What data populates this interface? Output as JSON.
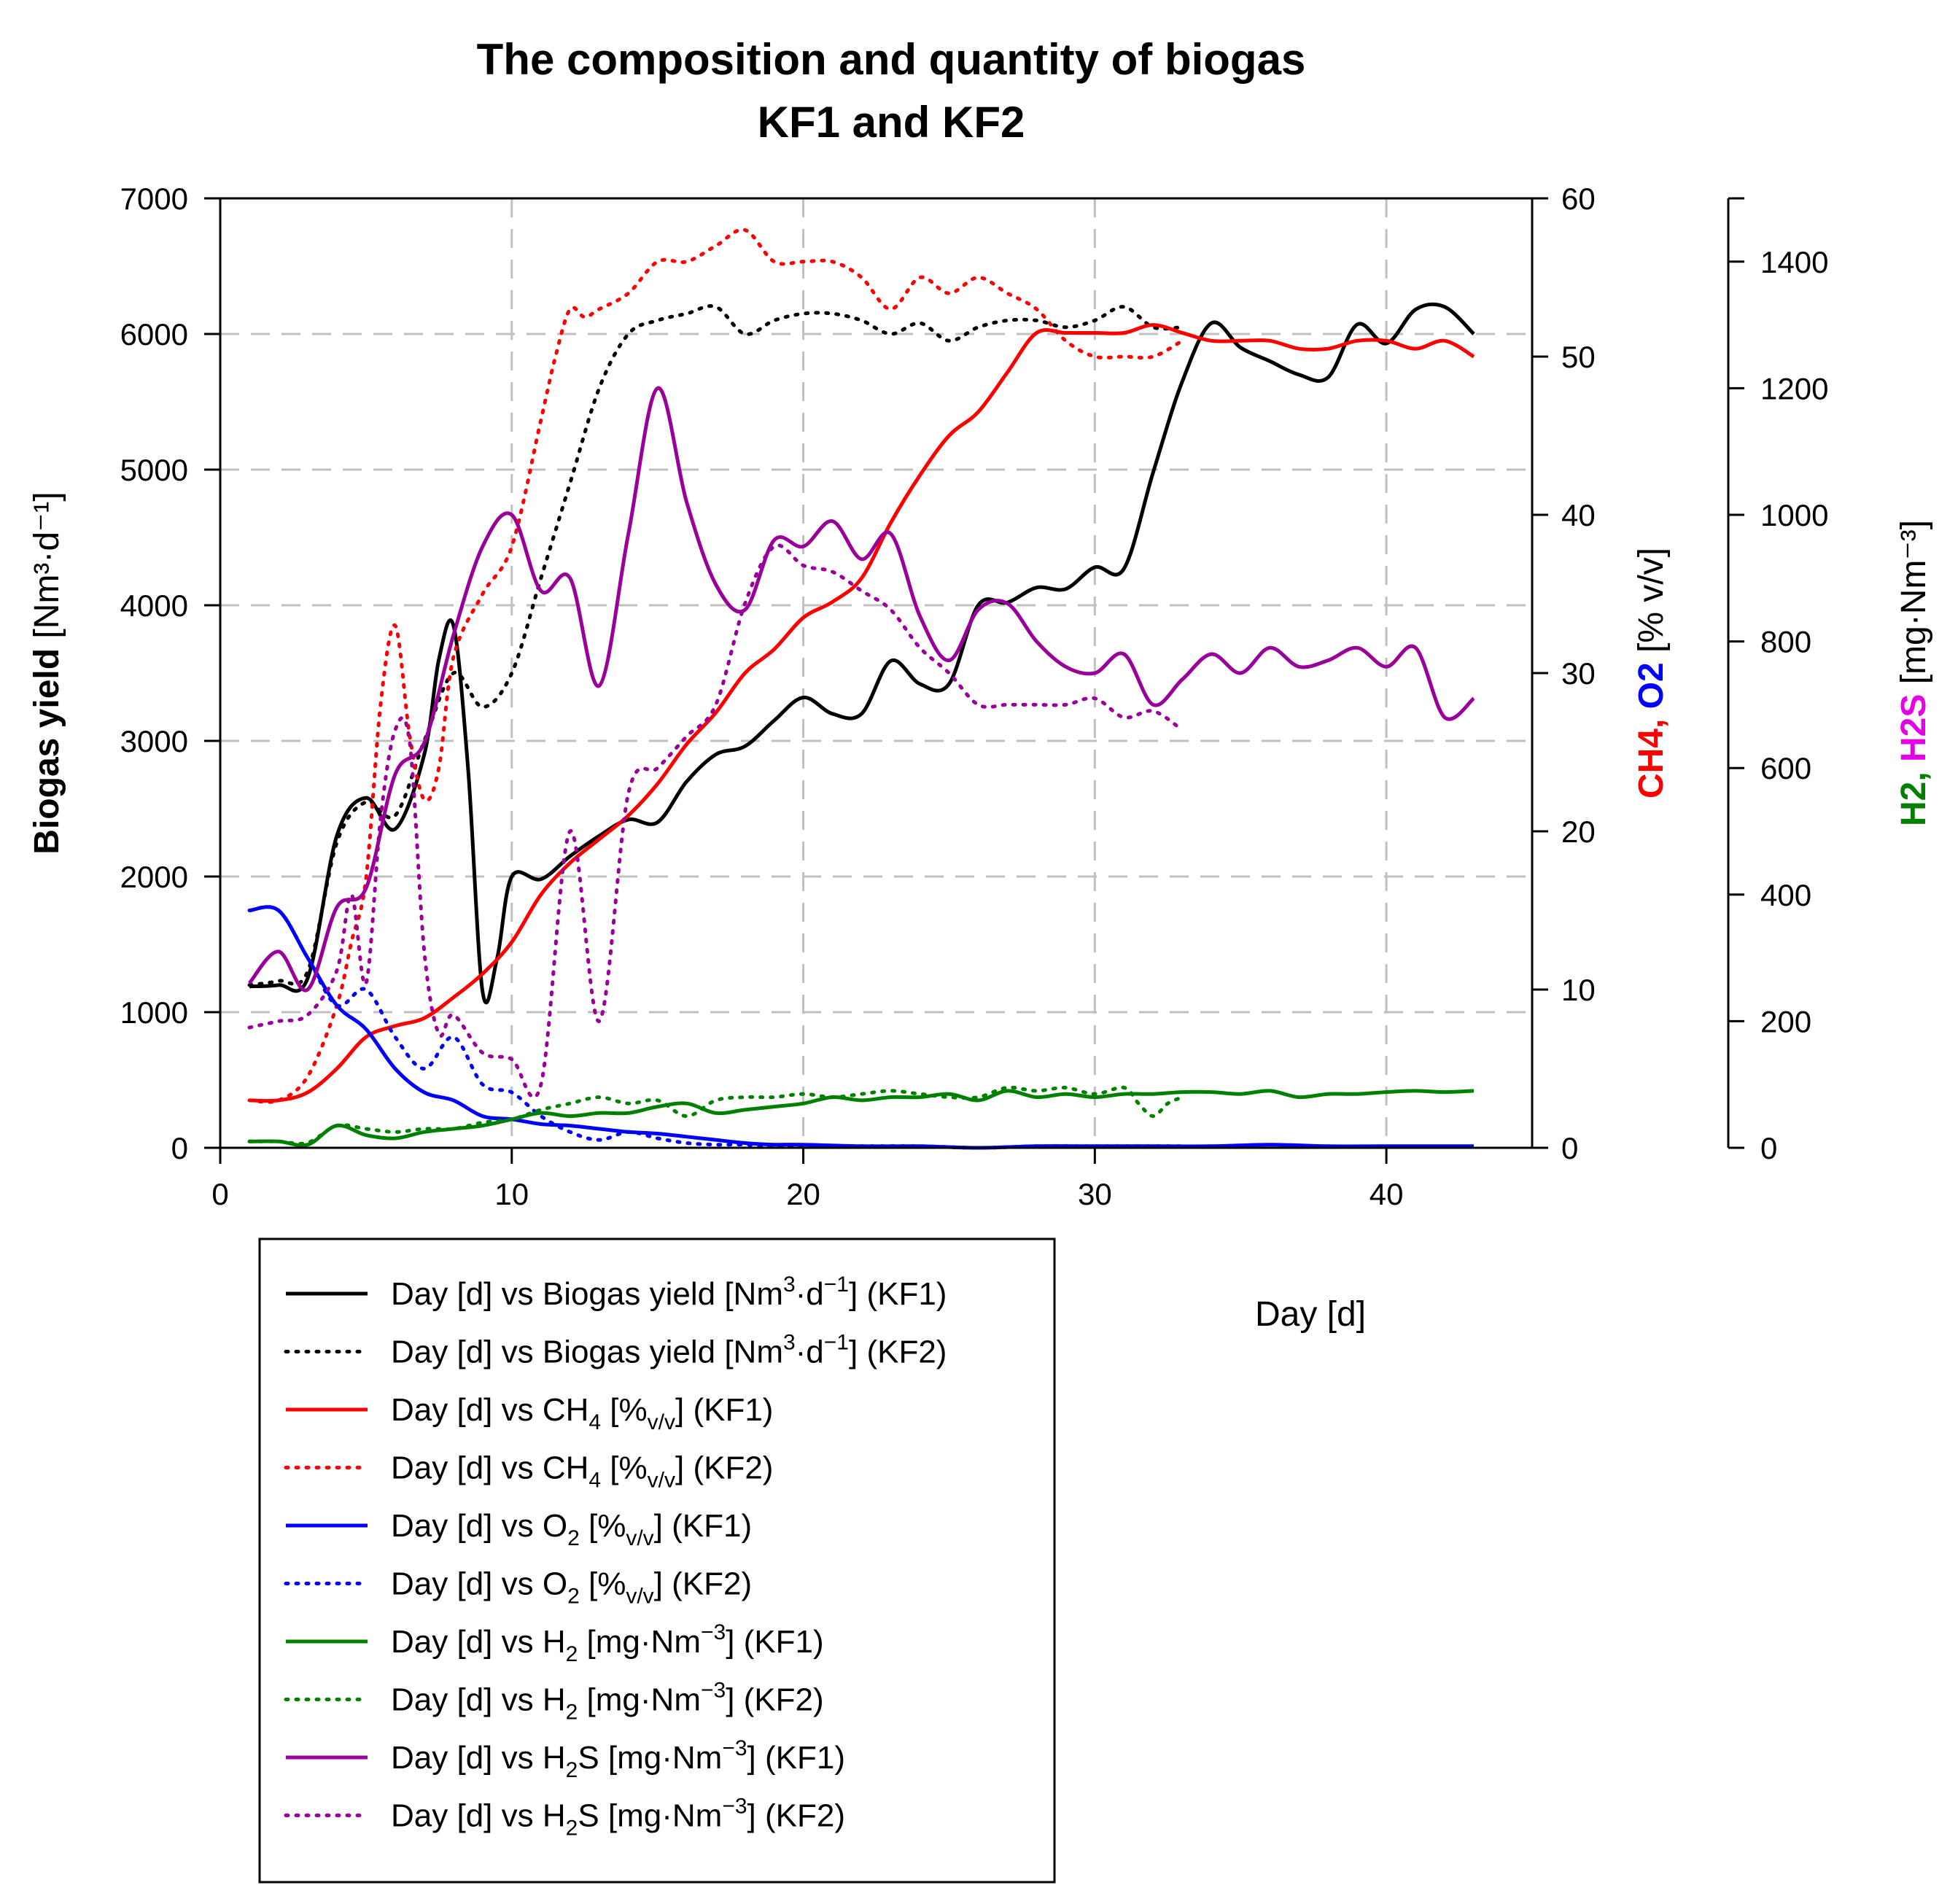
{
  "chart_data": {
    "type": "line",
    "title": [
      "The composition and quantity of biogas",
      "KF1 and KF2"
    ],
    "xlabel": "Day [d]",
    "xlim": [
      0,
      45
    ],
    "x_ticks": [
      "0",
      "10",
      "20",
      "30",
      "40"
    ],
    "axes": {
      "left": {
        "label": "Biogas yield [Nm³·d⁻¹]",
        "label_bold": "Biogas yield",
        "label_rest": " [Nm³·d⁻¹]",
        "ylim": [
          0,
          7000
        ],
        "ticks": [
          "0",
          "1000",
          "2000",
          "3000",
          "4000",
          "5000",
          "6000",
          "7000"
        ]
      },
      "right1": {
        "label": "CH4, O2 [% v/v]",
        "label_ch4": "CH4,",
        "label_o2": " O2",
        "label_unit": " [% v/v]",
        "ylim": [
          0,
          60
        ],
        "ticks": [
          "0",
          "10",
          "20",
          "30",
          "40",
          "50",
          "60"
        ]
      },
      "right2": {
        "label": "H2, H2S [mg·Nm⁻³]",
        "label_h2": "H2,",
        "label_h2s": " H2S",
        "label_unit": " [mg·Nm⁻³]",
        "ylim": [
          0,
          1500
        ],
        "ticks": [
          "0",
          "200",
          "400",
          "600",
          "800",
          "1000",
          "1200",
          "1400"
        ]
      }
    },
    "colors": {
      "ch4": "#ff0000",
      "o2": "#0000ff",
      "h2": "#008000",
      "h2s": "#990099",
      "h2s_label": "#e600e6",
      "biogas": "#000000",
      "grid": "#c0c0c0"
    },
    "series": [
      {
        "name": "Day [d] vs Biogas yield [Nm3·d-1] (KF1)",
        "axis": "left",
        "color": "#000000",
        "style": "solid",
        "x": [
          1,
          2,
          3,
          4,
          5,
          6,
          7,
          7.5,
          8,
          8.5,
          9,
          9.5,
          10,
          11,
          12,
          13,
          14,
          15,
          16,
          17,
          18,
          19,
          20,
          21,
          22,
          23,
          24,
          25,
          26,
          27,
          28,
          29,
          30,
          31,
          32,
          33,
          34,
          35,
          36,
          37,
          38,
          39,
          40,
          41,
          42,
          43
        ],
        "y": [
          1190,
          1200,
          1250,
          2300,
          2580,
          2350,
          2900,
          3600,
          3850,
          2800,
          1150,
          1400,
          2000,
          1980,
          2150,
          2300,
          2420,
          2400,
          2700,
          2900,
          2960,
          3150,
          3320,
          3200,
          3200,
          3590,
          3420,
          3420,
          4000,
          4020,
          4130,
          4120,
          4280,
          4270,
          4980,
          5650,
          6080,
          5900,
          5800,
          5700,
          5680,
          6070,
          5930,
          6180,
          6200,
          6000
        ]
      },
      {
        "name": "Day [d] vs Biogas yield [Nm3·d-1] (KF2)",
        "axis": "left",
        "color": "#000000",
        "style": "dotted",
        "x": [
          1,
          2,
          3,
          4,
          5,
          6,
          7,
          8,
          9,
          10,
          11,
          12,
          13,
          14,
          15,
          16,
          17,
          18,
          19,
          20,
          21,
          22,
          23,
          24,
          25,
          26,
          27,
          28,
          29,
          30,
          31,
          32,
          33
        ],
        "y": [
          1200,
          1230,
          1300,
          2250,
          2550,
          2450,
          3000,
          3500,
          3250,
          3500,
          4200,
          4900,
          5600,
          6000,
          6100,
          6150,
          6200,
          6000,
          6100,
          6150,
          6150,
          6100,
          6000,
          6080,
          5950,
          6050,
          6100,
          6100,
          6050,
          6100,
          6200,
          6050,
          6050
        ]
      },
      {
        "name": "Day [d] vs CH4 [%v/v] (KF1)",
        "axis": "right1",
        "color": "#ff0000",
        "style": "solid",
        "x": [
          1,
          2,
          3,
          4,
          5,
          6,
          7,
          8,
          9,
          10,
          11,
          12,
          13,
          14,
          15,
          16,
          17,
          18,
          19,
          20,
          21,
          22,
          23,
          24,
          25,
          26,
          27,
          28,
          29,
          30,
          31,
          32,
          33,
          34,
          35,
          36,
          37,
          38,
          39,
          40,
          41,
          42,
          43
        ],
        "y": [
          3,
          3,
          3.5,
          5,
          7,
          7.7,
          8.2,
          9.5,
          11,
          13,
          16,
          18,
          19.5,
          21,
          23,
          25.5,
          27.5,
          30,
          31.5,
          33.5,
          34.5,
          36,
          39.5,
          42.5,
          45,
          46.5,
          49,
          51.5,
          51.5,
          51.5,
          51.5,
          52,
          51.5,
          51,
          51,
          51,
          50.5,
          50.5,
          51,
          51,
          50.5,
          51,
          50
        ]
      },
      {
        "name": "Day [d] vs CH4 [%v/v] (KF2)",
        "axis": "right1",
        "color": "#ff0000",
        "style": "dotted",
        "x": [
          1,
          2,
          3,
          4,
          4.5,
          5,
          5.5,
          6,
          6.5,
          7,
          7.5,
          8,
          9,
          10,
          11,
          11.5,
          12,
          12.5,
          13,
          14,
          15,
          16,
          17,
          18,
          19,
          20,
          21,
          22,
          23,
          24,
          25,
          26,
          27,
          28,
          29,
          30,
          31,
          32,
          33
        ],
        "y": [
          3,
          3,
          4.5,
          9,
          13,
          17,
          28,
          33,
          26,
          22,
          24,
          31,
          35,
          38,
          46,
          50,
          53,
          52.5,
          53,
          54,
          56,
          56,
          57,
          58,
          56,
          56,
          56,
          55,
          53,
          55,
          54,
          55,
          54,
          53,
          51,
          50,
          50,
          50,
          51
        ]
      },
      {
        "name": "Day [d] vs O2 [%v/v] (KF1)",
        "axis": "right1",
        "color": "#0000ff",
        "style": "solid",
        "x": [
          1,
          2,
          3,
          4,
          5,
          6,
          7,
          8,
          9,
          10,
          11,
          12,
          13,
          14,
          15,
          16,
          17,
          18,
          19,
          20,
          22,
          24,
          26,
          28,
          30,
          32,
          34,
          36,
          38,
          40,
          43
        ],
        "y": [
          15,
          15,
          12,
          9,
          7.5,
          5,
          3.5,
          3,
          2,
          1.8,
          1.5,
          1.4,
          1.2,
          1,
          0.9,
          0.7,
          0.5,
          0.3,
          0.2,
          0.2,
          0.1,
          0.1,
          0,
          0.1,
          0.1,
          0.1,
          0.1,
          0.2,
          0.1,
          0.1,
          0.1
        ]
      },
      {
        "name": "Day [d] vs O2 [%v/v] (KF2)",
        "axis": "right1",
        "color": "#0000ff",
        "style": "dotted",
        "x": [
          1,
          2,
          3,
          4,
          5,
          6,
          7,
          8,
          9,
          10,
          11,
          12,
          13,
          14,
          15,
          16,
          17,
          18,
          19,
          20,
          22,
          24,
          26,
          28,
          30,
          32,
          33
        ],
        "y": [
          15,
          15,
          12,
          9,
          10,
          7,
          5,
          7,
          4,
          3.5,
          2,
          1,
          0.5,
          1,
          0.6,
          0.3,
          0.2,
          0.2,
          0.1,
          0.1,
          0.1,
          0.1,
          0,
          0.1,
          0.1,
          0.1,
          0.1
        ]
      },
      {
        "name": "Day [d] vs H2 [mg·Nm-3] (KF1)",
        "axis": "right2",
        "color": "#008000",
        "style": "solid",
        "x": [
          1,
          2,
          3,
          4,
          5,
          6,
          7,
          8,
          9,
          10,
          11,
          12,
          13,
          14,
          15,
          16,
          17,
          18,
          19,
          20,
          21,
          22,
          23,
          24,
          25,
          26,
          27,
          28,
          29,
          30,
          31,
          32,
          33,
          34,
          35,
          36,
          37,
          38,
          39,
          40,
          41,
          42,
          43
        ],
        "y": [
          10,
          10,
          5,
          35,
          20,
          15,
          25,
          30,
          35,
          45,
          55,
          50,
          55,
          55,
          65,
          70,
          55,
          60,
          65,
          70,
          80,
          75,
          80,
          80,
          85,
          75,
          90,
          80,
          85,
          80,
          85,
          85,
          88,
          88,
          85,
          90,
          80,
          85,
          85,
          88,
          90,
          88,
          90
        ]
      },
      {
        "name": "Day [d] vs H2 [mg·Nm-3] (KF2)",
        "axis": "right2",
        "color": "#008000",
        "style": "dotted",
        "x": [
          1,
          2,
          3,
          4,
          5,
          6,
          7,
          8,
          9,
          10,
          11,
          12,
          13,
          14,
          15,
          16,
          17,
          18,
          19,
          20,
          21,
          22,
          23,
          24,
          25,
          26,
          27,
          28,
          29,
          30,
          31,
          31.5,
          32,
          32.5,
          33
        ],
        "y": [
          10,
          10,
          8,
          35,
          30,
          25,
          30,
          30,
          40,
          45,
          60,
          70,
          80,
          70,
          75,
          50,
          75,
          80,
          80,
          85,
          80,
          85,
          90,
          85,
          80,
          80,
          95,
          90,
          95,
          85,
          95,
          70,
          50,
          70,
          80
        ]
      },
      {
        "name": "Day [d] vs H2S [mg·Nm-3] (KF1)",
        "axis": "right2",
        "color": "#990099",
        "style": "solid",
        "x": [
          1,
          2,
          3,
          4,
          5,
          6,
          7,
          8,
          9,
          10,
          11,
          12,
          13,
          14,
          15,
          16,
          17,
          18,
          19,
          20,
          21,
          22,
          23,
          24,
          25,
          26,
          27,
          28,
          29,
          30,
          31,
          32,
          33,
          34,
          35,
          36,
          37,
          38,
          39,
          40,
          41,
          42,
          43
        ],
        "y": [
          260,
          310,
          250,
          380,
          410,
          590,
          640,
          810,
          950,
          1000,
          880,
          900,
          730,
          970,
          1200,
          1020,
          890,
          850,
          960,
          950,
          990,
          930,
          970,
          840,
          770,
          850,
          860,
          800,
          760,
          750,
          780,
          700,
          740,
          780,
          750,
          790,
          760,
          770,
          790,
          760,
          790,
          680,
          710
        ]
      },
      {
        "name": "Day [d] vs H2S [mg·Nm-3] (KF2)",
        "axis": "right2",
        "color": "#990099",
        "style": "dotted",
        "x": [
          1,
          2,
          3,
          4,
          4.5,
          5,
          5.5,
          6,
          6.5,
          7,
          7.5,
          8,
          9,
          10,
          11,
          12,
          13,
          14,
          15,
          16,
          17,
          18,
          19,
          20,
          21,
          22,
          23,
          24,
          25,
          26,
          27,
          28,
          29,
          30,
          31,
          32,
          33
        ],
        "y": [
          190,
          200,
          210,
          280,
          400,
          260,
          520,
          660,
          640,
          310,
          180,
          210,
          150,
          140,
          100,
          500,
          200,
          560,
          600,
          650,
          700,
          860,
          950,
          920,
          910,
          880,
          850,
          790,
          750,
          700,
          700,
          700,
          700,
          710,
          680,
          690,
          660
        ]
      }
    ]
  },
  "legend": [
    {
      "pre": "Day [d] vs Biogas yield [Nm",
      "sup1": "3",
      "mid": "·d",
      "sup2": "−1",
      "post": "] (KF1)",
      "color": "#000000",
      "style": "solid"
    },
    {
      "pre": "Day [d] vs Biogas yield [Nm",
      "sup1": "3",
      "mid": "·d",
      "sup2": "−1",
      "post": "] (KF2)",
      "color": "#000000",
      "style": "dotted"
    },
    {
      "pre": "Day [d] vs CH",
      "sub1": "4",
      "mid": " [%",
      "sub2": "v/v",
      "post": "] (KF1)",
      "color": "#ff0000",
      "style": "solid"
    },
    {
      "pre": "Day [d] vs CH",
      "sub1": "4",
      "mid": " [%",
      "sub2": "v/v",
      "post": "] (KF2)",
      "color": "#ff0000",
      "style": "dotted"
    },
    {
      "pre": "Day [d] vs O",
      "sub1": "2",
      "mid": " [%",
      "sub2": "v/v",
      "post": "] (KF1)",
      "color": "#0000ff",
      "style": "solid"
    },
    {
      "pre": "Day [d] vs O",
      "sub1": "2",
      "mid": " [%",
      "sub2": "v/v",
      "post": "] (KF2)",
      "color": "#0000ff",
      "style": "dotted"
    },
    {
      "pre": "Day [d] vs H",
      "sub1": "2",
      "mid": " [mg·Nm",
      "sup2": "−3",
      "post": "] (KF1)",
      "color": "#008000",
      "style": "solid"
    },
    {
      "pre": "Day [d] vs H",
      "sub1": "2",
      "mid": " [mg·Nm",
      "sup2": "−3",
      "post": "] (KF2)",
      "color": "#008000",
      "style": "dotted"
    },
    {
      "pre": "Day [d] vs H",
      "sub1": "2",
      "mid": "S [mg·Nm",
      "sup2": "−3",
      "post": "] (KF1)",
      "color": "#990099",
      "style": "solid"
    },
    {
      "pre": "Day [d] vs H",
      "sub1": "2",
      "mid": "S [mg·Nm",
      "sup2": "−3",
      "post": "] (KF2)",
      "color": "#990099",
      "style": "dotted"
    }
  ]
}
